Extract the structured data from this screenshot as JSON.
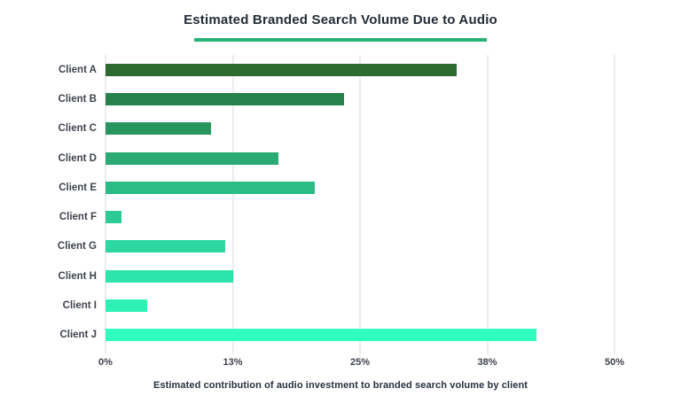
{
  "colors": {
    "accent_underline": "#27B277",
    "grid": "#ECECEC",
    "title_text": "#222B36",
    "label_text": "#3F434C",
    "caption_text": "#273140"
  },
  "chart_data": {
    "type": "bar",
    "orientation": "horizontal",
    "title": "Estimated Branded Search Volume Due to Audio",
    "caption": "Estimated contribution of audio investment to branded search volume by client",
    "categories": [
      "Client A",
      "Client B",
      "Client C",
      "Client D",
      "Client E",
      "Client F",
      "Client G",
      "Client H",
      "Client I",
      "Client J"
    ],
    "values": [
      34.5,
      23.4,
      10.4,
      17.0,
      20.6,
      1.6,
      11.8,
      12.5,
      4.1,
      42.3
    ],
    "unit": "%",
    "xlim": [
      0,
      50
    ],
    "x_ticks": [
      {
        "label": "0%",
        "value": 0
      },
      {
        "label": "13%",
        "value": 12.5
      },
      {
        "label": "25%",
        "value": 25
      },
      {
        "label": "38%",
        "value": 37.5
      },
      {
        "label": "50%",
        "value": 50
      }
    ],
    "grid": true,
    "legend": false,
    "bar_colors": [
      "#2D6A2F",
      "#27814A",
      "#29965F",
      "#2BAA73",
      "#2BBC86",
      "#2CCA94",
      "#2CD7A0",
      "#2DE5AC",
      "#2EF1B6",
      "#2FFEBF"
    ]
  }
}
